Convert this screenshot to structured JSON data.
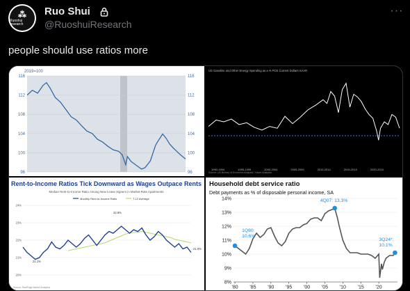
{
  "author": {
    "name": "Ruo Shui",
    "handle": "@RuoshuiResearch",
    "avatar_mark": "⁂",
    "avatar_brand": "Ruoshui research",
    "lock_icon": "lock-icon",
    "more_icon": "more-icon"
  },
  "tweet": {
    "text": "people should use ratios more"
  },
  "chart_data": [
    {
      "type": "line",
      "title": "",
      "unit_label": "2019=100",
      "ylim": [
        96,
        116
      ],
      "yticks": [
        "116",
        "112",
        "108",
        "104",
        "100",
        "96"
      ],
      "recession_band": true,
      "series": [
        {
          "color": "#2f6aa8"
        }
      ],
      "points": [
        [
          0,
          112
        ],
        [
          3,
          113
        ],
        [
          6,
          112.4
        ],
        [
          9,
          114
        ],
        [
          11,
          114.6
        ],
        [
          13,
          113.5
        ],
        [
          16,
          111.5
        ],
        [
          19,
          110.5
        ],
        [
          22,
          109
        ],
        [
          25,
          107.5
        ],
        [
          28,
          106.8
        ],
        [
          31,
          105.6
        ],
        [
          34,
          104.5
        ],
        [
          37,
          104
        ],
        [
          40,
          102.8
        ],
        [
          43,
          102.2
        ],
        [
          46,
          101.3
        ],
        [
          49,
          100.6
        ],
        [
          52,
          100.3
        ],
        [
          54,
          99.6
        ],
        [
          56,
          97.5
        ],
        [
          57,
          99.2
        ],
        [
          59,
          98.2
        ],
        [
          62,
          97.4
        ],
        [
          65,
          96.6
        ],
        [
          67,
          96.9
        ],
        [
          70,
          98.3
        ],
        [
          73,
          101.6
        ],
        [
          75,
          102.8
        ],
        [
          77,
          103.9
        ],
        [
          79,
          103
        ],
        [
          81,
          101.8
        ],
        [
          83,
          101
        ],
        [
          85,
          100.3
        ],
        [
          87,
          99.6
        ],
        [
          90,
          98.7
        ]
      ]
    },
    {
      "type": "line",
      "title": "US Gasoline and Other Energy Spending as a % PCE Current Dollars SAAR",
      "xticks": [
        "1990-1994",
        "1995-1999",
        "2000-2004",
        "2005-2009",
        "2010-2014",
        "2015-2019",
        "2020-2024"
      ],
      "footnote": "Source: US Bureau of Economic Analysis / Haver Analytics",
      "series": [
        {
          "color": "#ffffff"
        }
      ],
      "reference_line": {
        "color": "#3a7bd5",
        "style": "dashed"
      },
      "points": [
        [
          0,
          45
        ],
        [
          4,
          52
        ],
        [
          8,
          50
        ],
        [
          12,
          53
        ],
        [
          16,
          47
        ],
        [
          20,
          49
        ],
        [
          24,
          44
        ],
        [
          28,
          41
        ],
        [
          32,
          45
        ],
        [
          36,
          43
        ],
        [
          40,
          56
        ],
        [
          44,
          48
        ],
        [
          48,
          55
        ],
        [
          52,
          63
        ],
        [
          56,
          68
        ],
        [
          60,
          74
        ],
        [
          62,
          70
        ],
        [
          64,
          83
        ],
        [
          66,
          78
        ],
        [
          68,
          60
        ],
        [
          70,
          85
        ],
        [
          72,
          92
        ],
        [
          74,
          66
        ],
        [
          76,
          80
        ],
        [
          78,
          77
        ],
        [
          80,
          72
        ],
        [
          82,
          64
        ],
        [
          84,
          58
        ],
        [
          86,
          54
        ],
        [
          88,
          40
        ],
        [
          89,
          30
        ],
        [
          90,
          43
        ],
        [
          92,
          50
        ],
        [
          94,
          47
        ],
        [
          96,
          58
        ],
        [
          98,
          55
        ],
        [
          100,
          43
        ]
      ]
    },
    {
      "type": "line",
      "title": "Rent-to-Income Ratios Tick Downward as Wages Outpace Rents",
      "subtitle": "Median Rent-to-Income Ratio Among New Lease Signers in Market-Rate Apartments",
      "legend": [
        "Monthly Rent-to-Income Ratio",
        "T-12 Average"
      ],
      "ylim": [
        20,
        24
      ],
      "yticks": [
        "24%",
        "23%",
        "22%",
        "21%",
        "20%"
      ],
      "annotations": [
        "22.8%",
        "21.1%",
        "21.0%"
      ],
      "footnote": "Source: RealPage Market Analytics",
      "series": [
        {
          "name": "Monthly Rent-to-Income Ratio",
          "color": "#1f3f8f",
          "values": [
            21.6,
            21.3,
            21.1,
            20.9,
            21.0,
            21.3,
            21.5,
            21.9,
            21.6,
            21.5,
            21.7,
            22.0,
            21.8,
            21.6,
            21.8,
            22.1,
            22.3,
            22.0,
            21.7,
            22.0,
            22.3,
            22.5,
            22.4,
            22.6,
            22.8,
            22.6,
            22.4,
            22.6,
            22.5,
            22.7,
            22.3,
            22.0,
            22.2,
            22.5,
            22.3,
            22.0,
            21.8,
            21.6,
            21.8,
            21.5,
            21.6,
            21.3
          ]
        },
        {
          "name": "T-12 Average",
          "color": "#b9d66b",
          "values": [
            null,
            null,
            null,
            null,
            null,
            null,
            null,
            null,
            null,
            null,
            null,
            21.4,
            21.45,
            21.5,
            21.55,
            21.6,
            21.65,
            21.7,
            21.75,
            21.8,
            21.85,
            21.95,
            22.05,
            22.15,
            22.25,
            22.35,
            22.4,
            22.45,
            22.45,
            22.5,
            22.45,
            22.4,
            22.35,
            22.3,
            22.25,
            22.2,
            22.15,
            22.05,
            22.0,
            21.95,
            21.9,
            21.85
          ]
        }
      ]
    },
    {
      "type": "line",
      "title": "Household debt service ratio",
      "subtitle": "Debt payments as % of disposable personal income, SA",
      "ylim": [
        8,
        14
      ],
      "yticks": [
        "14%",
        "13%",
        "12%",
        "11%",
        "10%",
        "9%",
        "8%"
      ],
      "xticks": [
        "'80",
        "'85",
        "'90",
        "'95",
        "'00",
        "'05",
        "'10",
        "'15",
        "'20"
      ],
      "annotations": [
        {
          "label": "1Q80:\n10.6%",
          "x": 1980.0,
          "y": 10.6
        },
        {
          "label": "4Q07: 13.3%",
          "x": 2007.75,
          "y": 13.3
        },
        {
          "label": "3Q24*:\n10.1%",
          "x": 2024.5,
          "y": 10.1
        }
      ],
      "series": [
        {
          "color": "#555555",
          "x": [
            1980,
            1981,
            1982,
            1983,
            1984,
            1985,
            1986,
            1987,
            1988,
            1989,
            1990,
            1991,
            1992,
            1993,
            1994,
            1995,
            1996,
            1997,
            1998,
            1999,
            2000,
            2001,
            2002,
            2003,
            2004,
            2005,
            2006,
            2007,
            2007.75,
            2008.5,
            2009,
            2010,
            2011,
            2012,
            2013,
            2014,
            2015,
            2016,
            2017,
            2018,
            2019,
            2020,
            2020.25,
            2020.75,
            2021,
            2021.5,
            2022,
            2023,
            2024,
            2024.5
          ],
          "y": [
            10.6,
            10.4,
            10.2,
            10.0,
            10.4,
            11.1,
            11.5,
            11.2,
            11.4,
            11.8,
            11.9,
            11.3,
            10.8,
            10.6,
            10.9,
            11.5,
            11.8,
            11.9,
            11.9,
            12.1,
            12.2,
            12.5,
            12.6,
            12.6,
            12.4,
            12.9,
            13.1,
            13.2,
            13.3,
            12.6,
            12.0,
            11.0,
            10.4,
            10.1,
            10.1,
            10.1,
            10.0,
            10.0,
            10.0,
            9.9,
            9.7,
            10.0,
            8.3,
            9.3,
            8.9,
            9.4,
            9.7,
            9.9,
            9.9,
            10.1
          ]
        }
      ]
    }
  ]
}
